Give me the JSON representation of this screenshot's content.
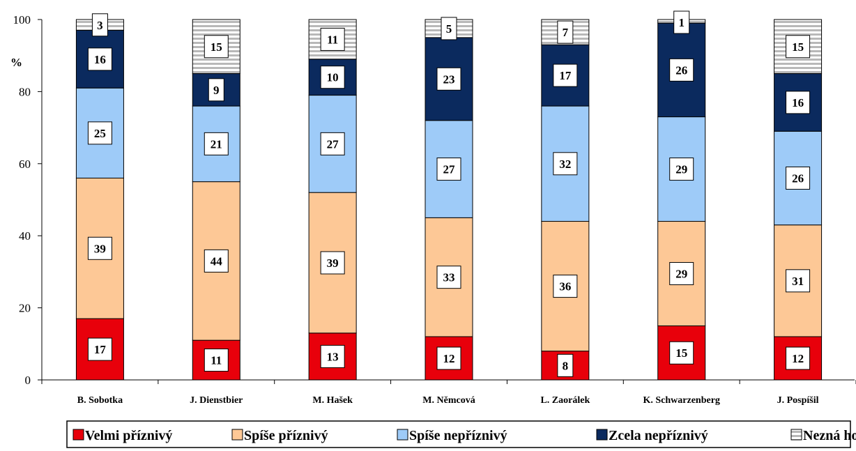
{
  "chart_data": {
    "type": "bar",
    "stacked": true,
    "title": "",
    "ylabel": "%",
    "ylim": [
      0,
      100
    ],
    "yticks": [
      0,
      20,
      40,
      60,
      80,
      100
    ],
    "grid": false,
    "legend_position": "bottom",
    "categories": [
      "B. Sobotka",
      "J. Dienstbier",
      "M. Hašek",
      "M. Němcová",
      "L. Zaorálek",
      "K. Schwarzenberg",
      "J. Pospíšil"
    ],
    "series": [
      {
        "name": "Velmi příznivý",
        "color": "#e8000b",
        "values": [
          17,
          11,
          13,
          12,
          8,
          15,
          12
        ]
      },
      {
        "name": "Spíše příznivý",
        "color": "#fdc896",
        "values": [
          39,
          44,
          39,
          33,
          36,
          29,
          31
        ]
      },
      {
        "name": "Spíše nepříznivý",
        "color": "#9ecbf8",
        "values": [
          25,
          21,
          27,
          27,
          32,
          29,
          26
        ]
      },
      {
        "name": "Zcela nepříznivý",
        "color": "#0b2a5e",
        "values": [
          16,
          9,
          10,
          23,
          17,
          26,
          16
        ]
      },
      {
        "name": "Nezná ho",
        "color": "#bdbdbd",
        "pattern": "horizontal-stripes",
        "values": [
          3,
          15,
          11,
          5,
          7,
          1,
          15
        ]
      }
    ]
  }
}
